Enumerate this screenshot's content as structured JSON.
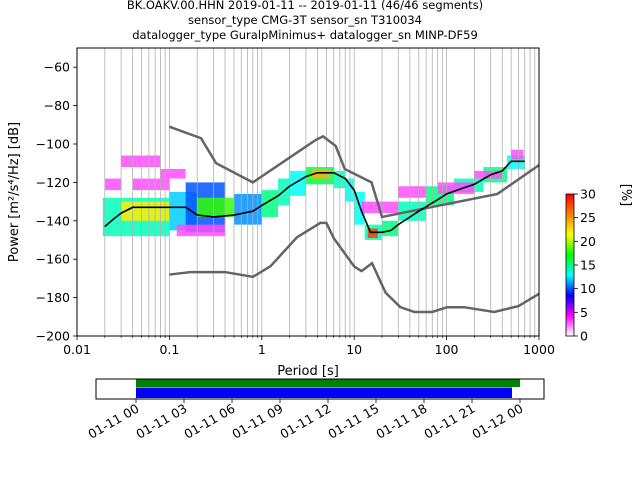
{
  "title_lines": [
    "BK.OAKV.00.HHN   2019-01-11 -- 2019-01-11  (46/46 segments)",
    "sensor_type CMG-3T sensor_sn T310034",
    "datalogger_type GuralpMinimus+ datalogger_sn MINP-DF59"
  ],
  "chart_data": [
    {
      "type": "heatmap",
      "title": "BK.OAKV.00.HHN   2019-01-11 -- 2019-01-11  (46/46 segments)",
      "xlabel": "Period [s]",
      "ylabel": "Power [m²/s⁴/Hz] [dB]",
      "xscale": "log",
      "xlim": [
        0.01,
        1000
      ],
      "ylim": [
        -200,
        -50
      ],
      "x_ticks": [
        0.01,
        0.1,
        1,
        10,
        100,
        1000
      ],
      "x_tick_labels": [
        "0.01",
        "0.1",
        "1",
        "10",
        "100",
        "1000"
      ],
      "y_ticks": [
        -200,
        -180,
        -160,
        -140,
        -120,
        -100,
        -80,
        -60
      ],
      "y_tick_labels": [
        "−200",
        "−180",
        "−160",
        "−140",
        "−120",
        "−100",
        "−80",
        "−60"
      ],
      "grid": "vertical log-minor lines",
      "colorbar": {
        "label": "[%]",
        "range": [
          0,
          30
        ],
        "ticks": [
          0,
          5,
          10,
          15,
          20,
          25,
          30
        ],
        "colormap": [
          "#ffffff",
          "#ff00ff",
          "#0000ff",
          "#00ffff",
          "#00ff00",
          "#ffff00",
          "#ff7f00",
          "#ff0000"
        ]
      },
      "mode_curve": {
        "color": "#000000",
        "x": [
          0.02,
          0.025,
          0.03,
          0.04,
          0.06,
          0.1,
          0.15,
          0.2,
          0.3,
          0.5,
          0.8,
          1.0,
          1.5,
          2.0,
          3.0,
          4.0,
          5.0,
          6.0,
          8.0,
          10.0,
          12.0,
          15.0,
          20.0,
          25.0,
          30.0,
          50.0,
          80.0,
          100.0,
          150.0,
          200.0,
          300.0,
          400.0,
          500.0,
          700.0
        ],
        "y": [
          -143,
          -139,
          -136,
          -133,
          -133,
          -133,
          -133,
          -137,
          -138,
          -137,
          -135,
          -132,
          -127,
          -122,
          -117,
          -115,
          -115,
          -115,
          -118,
          -124,
          -135,
          -146,
          -146,
          -145,
          -142,
          -135,
          -129,
          -126,
          -123,
          -121,
          -116,
          -114,
          -109,
          -109
        ]
      },
      "noise_models": [
        {
          "name": "NHNM",
          "color": "#646464",
          "x": [
            0.1,
            0.22,
            0.32,
            0.8,
            3.8,
            4.6,
            6.3,
            7.9,
            15.4,
            20.0,
            354.8,
            1000
          ],
          "y": [
            -91,
            -97,
            -110,
            -120,
            -98,
            -96,
            -101,
            -113,
            -120,
            -138,
            -126,
            -111
          ]
        },
        {
          "name": "NLNM",
          "color": "#646464",
          "x": [
            0.1,
            0.17,
            0.4,
            0.8,
            1.24,
            2.4,
            4.3,
            5.0,
            6.0,
            10.0,
            12.0,
            15.6,
            21.9,
            31.6,
            45.0,
            70.0,
            101.0,
            154.0,
            328.0,
            600.0,
            1000
          ],
          "y": [
            -168,
            -166.7,
            -166.7,
            -169.2,
            -163.7,
            -148.6,
            -141.1,
            -141.1,
            -149,
            -163.8,
            -166.2,
            -162.1,
            -177.5,
            -185.0,
            -187.5,
            -187.5,
            -185.0,
            -185.0,
            -187.5,
            -184.4,
            -178
          ]
        }
      ],
      "density_segments": [
        {
          "x0": 0.019,
          "x1": 0.1,
          "y0": -148,
          "y1": -128,
          "level": 14
        },
        {
          "x0": 0.03,
          "x1": 0.1,
          "y0": -140,
          "y1": -130,
          "level": 22
        },
        {
          "x0": 0.1,
          "x1": 0.2,
          "y0": -145,
          "y1": -125,
          "level": 12
        },
        {
          "x0": 0.15,
          "x1": 0.4,
          "y0": -146,
          "y1": -120,
          "level": 10
        },
        {
          "x0": 0.2,
          "x1": 0.5,
          "y0": -138,
          "y1": -128,
          "level": 18
        },
        {
          "x0": 0.5,
          "x1": 1.0,
          "y0": -142,
          "y1": -126,
          "level": 11
        },
        {
          "x0": 1.0,
          "x1": 1.5,
          "y0": -138,
          "y1": -124,
          "level": 15
        },
        {
          "x0": 1.5,
          "x1": 2.0,
          "y0": -132,
          "y1": -118,
          "level": 14
        },
        {
          "x0": 2.0,
          "x1": 3.0,
          "y0": -127,
          "y1": -114,
          "level": 13
        },
        {
          "x0": 3.0,
          "x1": 6.0,
          "y0": -121,
          "y1": -112,
          "level": 16
        },
        {
          "x0": 3.5,
          "x1": 5.5,
          "y0": -118,
          "y1": -113,
          "level": 24
        },
        {
          "x0": 6.0,
          "x1": 8.0,
          "y0": -123,
          "y1": -114,
          "level": 14
        },
        {
          "x0": 8.0,
          "x1": 10.0,
          "y0": -130,
          "y1": -118,
          "level": 13
        },
        {
          "x0": 10.0,
          "x1": 13.0,
          "y0": -142,
          "y1": -125,
          "level": 13
        },
        {
          "x0": 13.0,
          "x1": 20.0,
          "y0": -150,
          "y1": -142,
          "level": 14
        },
        {
          "x0": 14.0,
          "x1": 18.0,
          "y0": -149,
          "y1": -144,
          "level": 28
        },
        {
          "x0": 20.0,
          "x1": 30.0,
          "y0": -148,
          "y1": -140,
          "level": 15
        },
        {
          "x0": 30.0,
          "x1": 60.0,
          "y0": -140,
          "y1": -130,
          "level": 14
        },
        {
          "x0": 60.0,
          "x1": 120.0,
          "y0": -132,
          "y1": -122,
          "level": 15
        },
        {
          "x0": 120.0,
          "x1": 250.0,
          "y0": -125,
          "y1": -118,
          "level": 14
        },
        {
          "x0": 250.0,
          "x1": 450.0,
          "y0": -120,
          "y1": -112,
          "level": 15
        },
        {
          "x0": 450.0,
          "x1": 700.0,
          "y0": -113,
          "y1": -106,
          "level": 13
        },
        {
          "x0": 0.03,
          "x1": 0.08,
          "y0": -112,
          "y1": -106,
          "level": 3
        },
        {
          "x0": 0.02,
          "x1": 0.03,
          "y0": -124,
          "y1": -118,
          "level": 3
        },
        {
          "x0": 0.04,
          "x1": 0.1,
          "y0": -124,
          "y1": -118,
          "level": 3
        },
        {
          "x0": 0.08,
          "x1": 0.15,
          "y0": -118,
          "y1": -113,
          "level": 3
        },
        {
          "x0": 0.12,
          "x1": 0.4,
          "y0": -148,
          "y1": -142,
          "level": 3
        },
        {
          "x0": 12.0,
          "x1": 30.0,
          "y0": -136,
          "y1": -130,
          "level": 3
        },
        {
          "x0": 30.0,
          "x1": 60.0,
          "y0": -128,
          "y1": -122,
          "level": 3
        },
        {
          "x0": 80.0,
          "x1": 200.0,
          "y0": -126,
          "y1": -120,
          "level": 3
        },
        {
          "x0": 200.0,
          "x1": 400.0,
          "y0": -118,
          "y1": -114,
          "level": 3
        },
        {
          "x0": 500.0,
          "x1": 680.0,
          "y0": -108,
          "y1": -103,
          "level": 3
        }
      ]
    },
    {
      "type": "bar",
      "title": "",
      "x_tick_labels": [
        "01-11 00",
        "01-11 03",
        "01-11 06",
        "01-11 09",
        "01-11 12",
        "01-11 15",
        "01-11 18",
        "01-11 21",
        "01-12 00"
      ],
      "xlim_hours": [
        -2.5,
        25.5
      ],
      "series": [
        {
          "color": "#008000",
          "start_hour": 0,
          "end_hour": 24.0
        },
        {
          "color": "#0000ff",
          "start_hour": 0,
          "end_hour": 23.5
        }
      ]
    }
  ]
}
